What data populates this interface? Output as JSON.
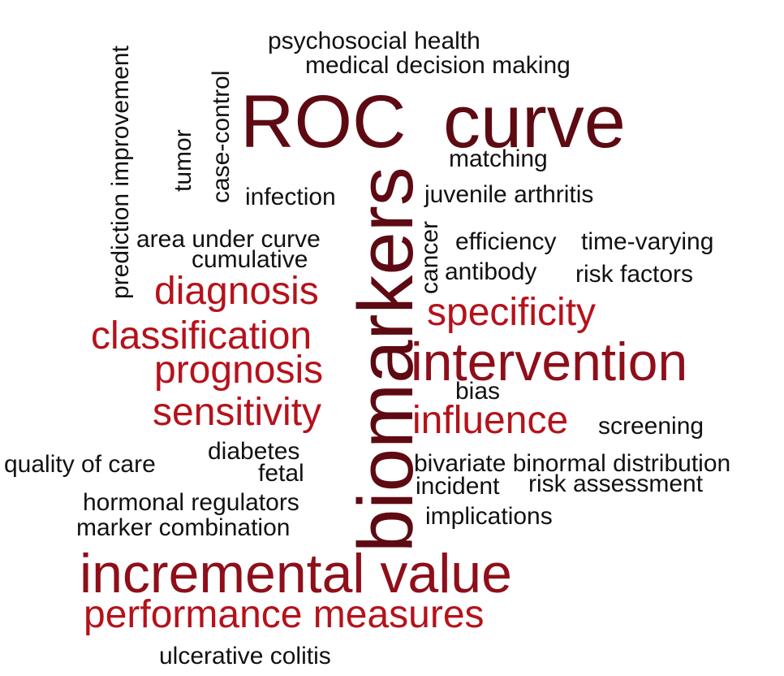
{
  "words": {
    "psychosocial_health": "psychosocial health",
    "medical_decision_making": "medical decision making",
    "roc": "ROC",
    "curve": "curve",
    "matching": "matching",
    "juvenile_arthritis": "juvenile arthritis",
    "infection": "infection",
    "prediction_improvement": "prediction improvement",
    "tumor": "tumor",
    "case_control": "case-control",
    "area_under_curve": "area under curve",
    "cumulative": "cumulative",
    "diagnosis": "diagnosis",
    "classification": "classification",
    "prognosis": "prognosis",
    "sensitivity": "sensitivity",
    "biomarkers": "biomarkers",
    "cancer": "cancer",
    "efficiency": "efficiency",
    "time_varying": "time-varying",
    "antibody": "antibody",
    "risk_factors": "risk factors",
    "specificity": "specificity",
    "intervention": "intervention",
    "bias": "bias",
    "influence": "influence",
    "screening": "screening",
    "quality_of_care": "quality of care",
    "diabetes": "diabetes",
    "fetal": "fetal",
    "bivariate_binormal_distribution": "bivariate binormal distribution",
    "incident": "incident",
    "risk_assessment": "risk assessment",
    "hormonal_regulators": "hormonal regulators",
    "marker_combination": "marker combination",
    "implications": "implications",
    "incremental_value": "incremental value",
    "performance_measures": "performance measures",
    "ulcerative_colitis": "ulcerative colitis"
  },
  "colors": {
    "black": "#111111",
    "red": "#b5121b",
    "maroon": "#8e0f1a",
    "dark_maroon": "#5e0a13"
  }
}
